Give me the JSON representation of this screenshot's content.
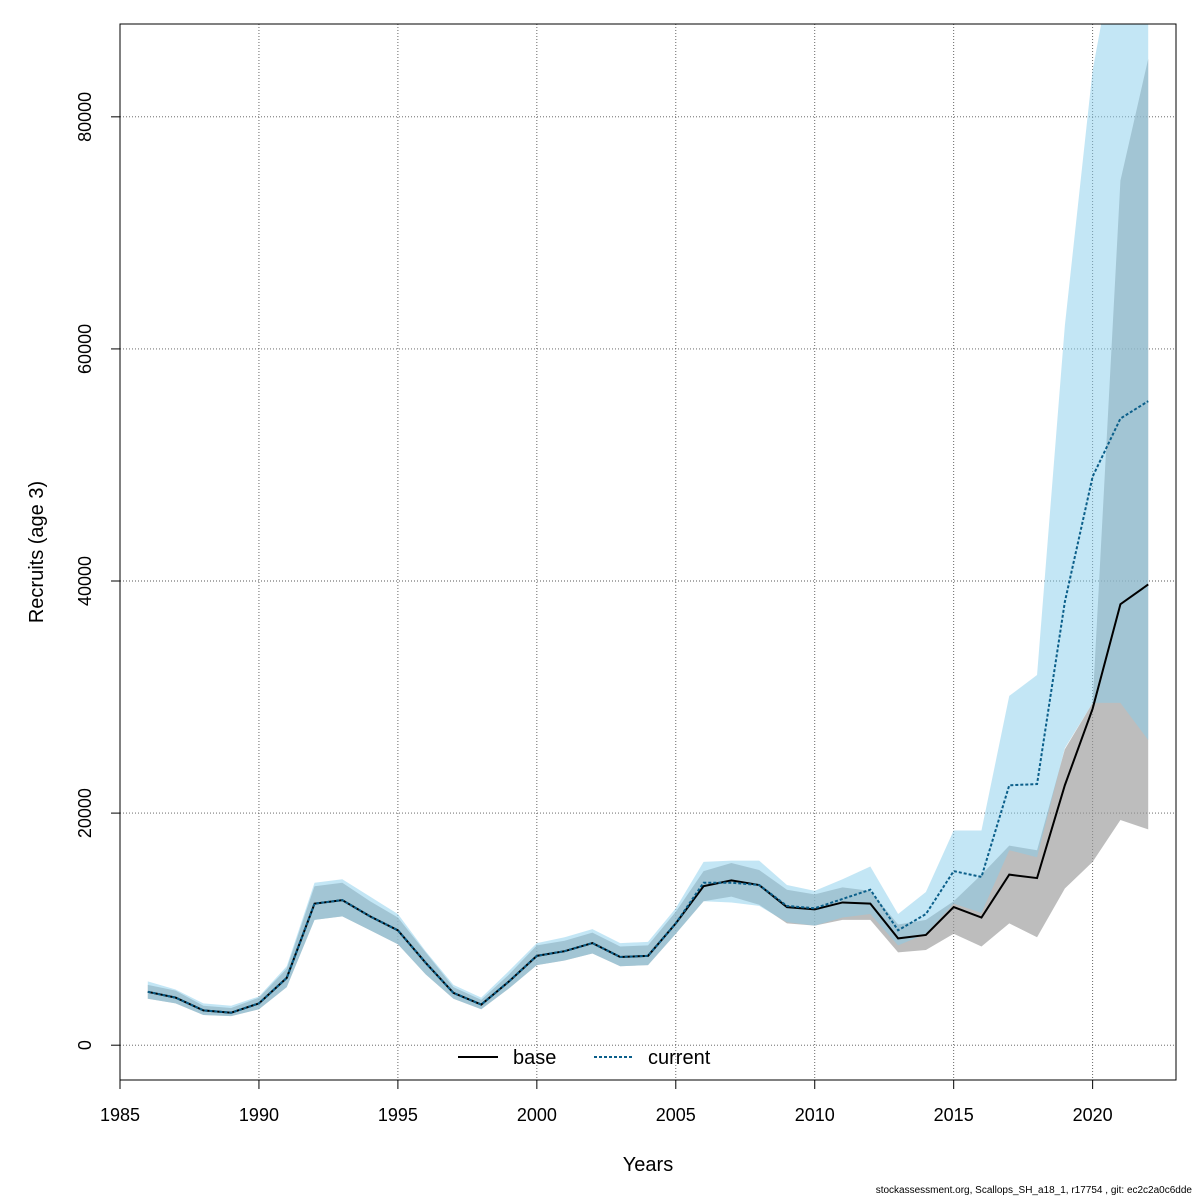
{
  "chart_data": {
    "type": "line",
    "xlabel": "Years",
    "ylabel": "Recruits (age 3)",
    "xlim": [
      1985,
      2023
    ],
    "ylim": [
      -3000,
      88000
    ],
    "xticks": [
      1985,
      1990,
      1995,
      2000,
      2005,
      2010,
      2015,
      2020
    ],
    "yticks": [
      0,
      20000,
      40000,
      60000,
      80000
    ],
    "grid": true,
    "legend": {
      "position": "bottom-center",
      "entries": [
        "base",
        "current"
      ]
    },
    "x": [
      1986,
      1987,
      1988,
      1989,
      1990,
      1991,
      1992,
      1993,
      1994,
      1995,
      1996,
      1997,
      1998,
      1999,
      2000,
      2001,
      2002,
      2003,
      2004,
      2005,
      2006,
      2007,
      2008,
      2009,
      2010,
      2011,
      2012,
      2013,
      2014,
      2015,
      2016,
      2017,
      2018,
      2019,
      2020,
      2021,
      2022
    ],
    "series": [
      {
        "name": "base",
        "color": "#000000",
        "band_color": "#999999",
        "line_style": "solid",
        "values": [
          4600,
          4100,
          3000,
          2800,
          3600,
          5800,
          12200,
          12500,
          11100,
          9900,
          7100,
          4500,
          3500,
          5500,
          7700,
          8100,
          8800,
          7600,
          7700,
          10500,
          13700,
          14200,
          13800,
          11900,
          11700,
          12300,
          12200,
          9200,
          9500,
          11900,
          11000,
          14700,
          14400,
          22400,
          29000,
          38000,
          39700
        ],
        "lower": [
          4000,
          3600,
          2600,
          2500,
          3100,
          5000,
          10800,
          11100,
          9900,
          8700,
          6100,
          4000,
          3100,
          4900,
          6900,
          7300,
          7900,
          6800,
          6900,
          9600,
          12400,
          12800,
          12100,
          10500,
          10300,
          10800,
          10800,
          8000,
          8200,
          9600,
          8500,
          10500,
          9300,
          13500,
          15800,
          19400,
          18600
        ],
        "upper": [
          5200,
          4700,
          3400,
          3200,
          4100,
          6600,
          13700,
          14000,
          12400,
          11000,
          8000,
          5000,
          3900,
          6100,
          8600,
          9000,
          9700,
          8500,
          8600,
          11500,
          15000,
          15700,
          15100,
          13400,
          13000,
          13600,
          13300,
          10400,
          10800,
          12400,
          14700,
          17200,
          16800,
          25500,
          29500,
          74500,
          85000
        ]
      },
      {
        "name": "current",
        "color": "#0b5f8a",
        "band_color": "#87ceeb",
        "line_style": "dashed",
        "values": [
          4600,
          4100,
          3000,
          2800,
          3600,
          5800,
          12200,
          12500,
          11100,
          9900,
          7100,
          4500,
          3500,
          5500,
          7700,
          8100,
          8800,
          7600,
          7700,
          10500,
          14000,
          14000,
          13800,
          12000,
          11800,
          12600,
          13400,
          9900,
          11300,
          15000,
          14500,
          22400,
          22500,
          38200,
          49000,
          54000,
          55500
        ],
        "lower": [
          4000,
          3600,
          2600,
          2500,
          3100,
          5000,
          10800,
          11100,
          9900,
          8700,
          6100,
          4000,
          3100,
          4900,
          6900,
          7300,
          7900,
          6800,
          6900,
          9600,
          12400,
          12300,
          12000,
          10600,
          10300,
          11000,
          11300,
          8600,
          9600,
          12200,
          11400,
          16800,
          16200,
          25600,
          29500,
          29500,
          26300
        ],
        "upper": [
          5500,
          4800,
          3600,
          3400,
          4200,
          6800,
          14000,
          14300,
          12800,
          11300,
          8100,
          5200,
          4100,
          6400,
          8800,
          9300,
          10000,
          8800,
          8900,
          11800,
          15800,
          15900,
          15900,
          13800,
          13300,
          14300,
          15400,
          11300,
          13200,
          18500,
          18500,
          30100,
          31900,
          62000,
          84000,
          97000,
          98000
        ]
      }
    ]
  },
  "footer": "stockassessment.org, Scallops_SH_a18_1, r17754 , git: ec2c2a0c6dde"
}
